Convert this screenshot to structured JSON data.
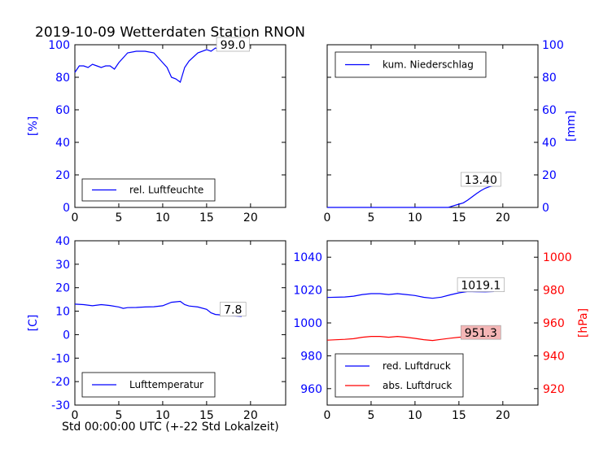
{
  "header": {
    "title": "2019-10-09 Wetterdaten Station RNON"
  },
  "footer": {
    "xlabel": "Std 00:00:00 UTC (+-22 Std Lokalzeit)"
  },
  "colors": {
    "blue": "#0000ff",
    "red": "#ff0000",
    "axis": "#000000",
    "last_value_box_red": "#f4b6b6"
  },
  "chart_data": [
    {
      "id": "humidity",
      "type": "line",
      "xlim": [
        0,
        24
      ],
      "x_ticks": [
        0,
        5,
        10,
        15,
        20
      ],
      "ylim": [
        0,
        100
      ],
      "y_ticks": [
        0,
        20,
        40,
        60,
        80,
        100
      ],
      "ylabel": "[%]",
      "ylabel_side": "left",
      "tick_color": "#0000ff",
      "legend_location": "lower-left",
      "series": [
        {
          "name": "rel. Luftfeuchte",
          "color": "#0000ff",
          "x": [
            0,
            0.5,
            1,
            1.5,
            2,
            2.5,
            3,
            3.5,
            4,
            4.5,
            5,
            5.5,
            6,
            7,
            8,
            9,
            10,
            10.5,
            11,
            11.5,
            12,
            12.5,
            13,
            14,
            15,
            15.5,
            16,
            16.5,
            17,
            18,
            19
          ],
          "y": [
            83,
            87,
            87,
            86,
            88,
            87,
            86,
            87,
            87,
            85,
            89,
            92,
            95,
            96,
            96,
            95,
            89,
            86,
            80,
            79,
            77,
            86,
            90,
            95,
            97,
            96,
            98,
            97,
            98,
            99,
            99
          ],
          "last_value": "99.0",
          "last_value_at": [
            18,
            99
          ]
        }
      ]
    },
    {
      "id": "precipitation",
      "type": "line",
      "xlim": [
        0,
        24
      ],
      "x_ticks": [
        0,
        5,
        10,
        15,
        20
      ],
      "ylim": [
        0,
        100
      ],
      "y_ticks": [
        0,
        20,
        40,
        60,
        80,
        100
      ],
      "ylabel": "[mm]",
      "ylabel_side": "right",
      "tick_color": "#0000ff",
      "legend_location": "upper-left",
      "series": [
        {
          "name": "kum. Niederschlag",
          "color": "#0000ff",
          "x": [
            0,
            13.8,
            14.5,
            15,
            15.5,
            16,
            16.5,
            17,
            17.5,
            18,
            18.5,
            19
          ],
          "y": [
            0,
            0,
            1.2,
            2,
            2.8,
            4.5,
            6.5,
            8.5,
            10.3,
            11.8,
            12.8,
            13.4
          ],
          "last_value": "13.40",
          "last_value_at": [
            17.5,
            16
          ]
        }
      ]
    },
    {
      "id": "temperature",
      "type": "line",
      "xlim": [
        0,
        24
      ],
      "x_ticks": [
        0,
        5,
        10,
        15,
        20
      ],
      "ylim": [
        -30,
        40
      ],
      "y_ticks": [
        -30,
        -20,
        -10,
        0,
        10,
        20,
        30,
        40
      ],
      "ylabel": "[C]",
      "ylabel_side": "left",
      "tick_color": "#0000ff",
      "legend_location": "lower-left",
      "series": [
        {
          "name": "Lufttemperatur",
          "color": "#0000ff",
          "x": [
            0,
            1,
            2,
            3,
            4,
            5,
            5.5,
            6,
            7,
            8,
            9,
            10,
            11,
            12,
            12.5,
            13,
            14,
            15,
            15.5,
            16,
            17,
            18,
            19
          ],
          "y": [
            13,
            12.8,
            12.3,
            12.8,
            12.4,
            11.8,
            11.2,
            11.5,
            11.6,
            11.8,
            11.9,
            12.3,
            13.8,
            14.2,
            12.8,
            12.2,
            11.8,
            10.8,
            9.3,
            8.6,
            8.3,
            8.0,
            7.8
          ],
          "last_value": "7.8",
          "last_value_at": [
            18,
            10
          ]
        }
      ]
    },
    {
      "id": "pressure",
      "type": "line",
      "xlim": [
        0,
        24
      ],
      "x_ticks": [
        0,
        5,
        10,
        15,
        20
      ],
      "ylim": [
        950,
        1050
      ],
      "y_ticks": [
        960,
        980,
        1000,
        1020,
        1040
      ],
      "ylabel": "",
      "ylabel_side": "left",
      "tick_color": "#0000ff",
      "y2lim": [
        910,
        1010
      ],
      "y2_ticks": [
        920,
        940,
        960,
        980,
        1000
      ],
      "y2label": "[hPa]",
      "y2_tick_color": "#ff0000",
      "legend_location": "lower-left",
      "series": [
        {
          "name": "red. Luftdruck",
          "color": "#0000ff",
          "axis": "left",
          "x": [
            0,
            2,
            3,
            4,
            5,
            6,
            7,
            8,
            9,
            10,
            11,
            12,
            13,
            14,
            15,
            16,
            17,
            18,
            19
          ],
          "y": [
            1015.5,
            1015.8,
            1016.3,
            1017.3,
            1017.8,
            1017.8,
            1017.3,
            1017.8,
            1017.3,
            1016.7,
            1015.6,
            1015.0,
            1015.7,
            1017.1,
            1018.3,
            1019.1,
            1019.0,
            1018.9,
            1019.1
          ],
          "last_value": "1019.1",
          "last_value_at": [
            17.5,
            1022
          ]
        },
        {
          "name": "abs. Luftdruck",
          "color": "#ff0000",
          "axis": "right",
          "x": [
            0,
            2,
            3,
            4,
            5,
            6,
            7,
            8,
            9,
            10,
            11,
            12,
            13,
            14,
            15,
            16,
            17,
            18,
            19
          ],
          "y": [
            949.5,
            950.0,
            950.4,
            951.3,
            951.8,
            951.8,
            951.3,
            951.8,
            951.3,
            950.6,
            949.8,
            949.3,
            950.0,
            950.7,
            951.3,
            951.6,
            951.3,
            951.2,
            951.3
          ],
          "last_value": "951.3",
          "last_value_at": [
            17.5,
            953
          ]
        }
      ]
    }
  ]
}
